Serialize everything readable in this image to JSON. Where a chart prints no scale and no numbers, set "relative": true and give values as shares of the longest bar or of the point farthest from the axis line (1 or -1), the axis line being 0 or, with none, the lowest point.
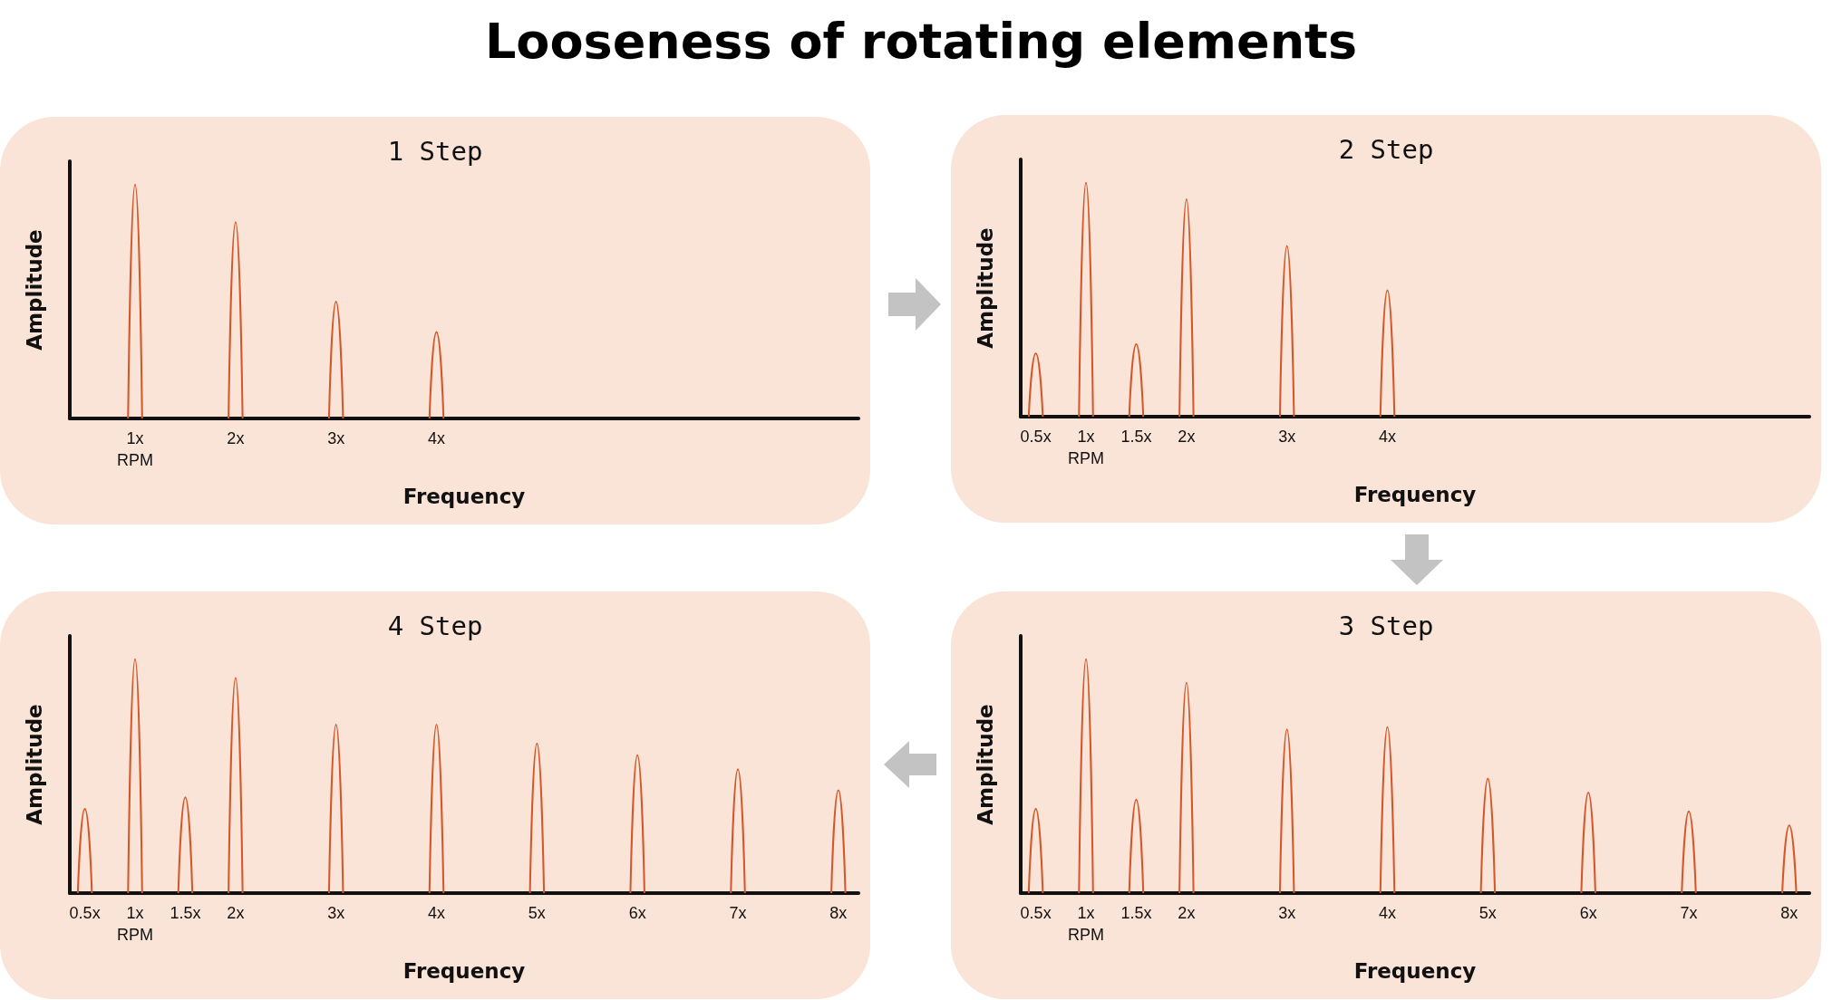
{
  "chart_data": [
    {
      "type": "line",
      "title": "Looseness of rotating elements",
      "subtitle": "1 Step",
      "xlabel": "Frequency",
      "ylabel": "Amplitude",
      "relative": true,
      "tick_labels": "x",
      "grid": false,
      "marker": "none",
      "xlim": [
        0.35,
        8.2
      ],
      "xticks": [
        {
          "value": 1,
          "label": "1x\nRPM"
        },
        {
          "value": 2,
          "label": "2x"
        },
        {
          "value": 3,
          "label": "3x"
        },
        {
          "value": 4,
          "label": "4x"
        }
      ],
      "series": [
        {
          "color": "#d4572a",
          "x": [
            0.93,
            1,
            1.07,
            1.5,
            1.93,
            2,
            2.07,
            2.5,
            2.93,
            3,
            3.07,
            3.5,
            3.93,
            4,
            4.07
          ],
          "values": [
            0,
            1,
            0,
            null,
            0,
            0.84,
            0,
            null,
            0,
            0.5,
            0,
            null,
            0,
            0.37,
            0
          ]
        }
      ]
    },
    {
      "type": "line",
      "subtitle": "2 Step",
      "xlabel": "Frequency",
      "ylabel": "Amplitude",
      "relative": true,
      "tick_labels": "x",
      "grid": false,
      "marker": "none",
      "xlim": [
        0.35,
        8.2
      ],
      "xticks": [
        {
          "value": 0.5,
          "label": "0.5x"
        },
        {
          "value": 1,
          "label": "1x\nRPM"
        },
        {
          "value": 1.5,
          "label": "1.5x"
        },
        {
          "value": 2,
          "label": "2x"
        },
        {
          "value": 3,
          "label": "3x"
        },
        {
          "value": 4,
          "label": "4x"
        }
      ],
      "series": [
        {
          "color": "#d4572a",
          "x": [
            0.43,
            0.5,
            0.57,
            0.75,
            0.93,
            1,
            1.07,
            1.25,
            1.43,
            1.5,
            1.57,
            1.75,
            1.93,
            2,
            2.07,
            2.5,
            2.93,
            3,
            3.07,
            3.5,
            3.93,
            4,
            4.07
          ],
          "values": [
            0,
            0.27,
            0,
            null,
            0,
            1,
            0,
            null,
            0,
            0.31,
            0,
            null,
            0,
            0.93,
            0,
            null,
            0,
            0.73,
            0,
            null,
            0,
            0.54,
            0
          ]
        }
      ]
    },
    {
      "type": "line",
      "subtitle": "4 Step",
      "xlabel": "Frequency",
      "ylabel": "Amplitude",
      "relative": true,
      "tick_labels": "x",
      "grid": false,
      "marker": "none",
      "xlim": [
        0.35,
        8.2
      ],
      "xticks": [
        {
          "value": 0.5,
          "label": "0.5x"
        },
        {
          "value": 1,
          "label": "1x\nRPM"
        },
        {
          "value": 1.5,
          "label": "1.5x"
        },
        {
          "value": 2,
          "label": "2x"
        },
        {
          "value": 3,
          "label": "3x"
        },
        {
          "value": 4,
          "label": "4x"
        },
        {
          "value": 5,
          "label": "5x"
        },
        {
          "value": 6,
          "label": "6x"
        },
        {
          "value": 7,
          "label": "7x"
        },
        {
          "value": 8,
          "label": "8x"
        }
      ],
      "series": [
        {
          "color": "#d4572a",
          "x": [
            0.43,
            0.5,
            0.57,
            0.75,
            0.93,
            1,
            1.07,
            1.25,
            1.43,
            1.5,
            1.57,
            1.75,
            1.93,
            2,
            2.07,
            2.5,
            2.93,
            3,
            3.07,
            3.5,
            3.93,
            4,
            4.07,
            4.5,
            4.93,
            5,
            5.07,
            5.5,
            5.93,
            6,
            6.07,
            6.5,
            6.93,
            7,
            7.07,
            7.5,
            7.93,
            8,
            8.07
          ],
          "values": [
            0,
            0.36,
            0,
            null,
            0,
            1,
            0,
            null,
            0,
            0.41,
            0,
            null,
            0,
            0.92,
            0,
            null,
            0,
            0.72,
            0,
            null,
            0,
            0.72,
            0,
            null,
            0,
            0.64,
            0,
            null,
            0,
            0.59,
            0,
            null,
            0,
            0.53,
            0,
            null,
            0,
            0.44,
            0
          ]
        }
      ]
    },
    {
      "type": "line",
      "subtitle": "3 Step",
      "xlabel": "Frequency",
      "ylabel": "Amplitude",
      "relative": true,
      "tick_labels": "x",
      "grid": false,
      "marker": "none",
      "xlim": [
        0.35,
        8.2
      ],
      "xticks": [
        {
          "value": 0.5,
          "label": "0.5x"
        },
        {
          "value": 1,
          "label": "1x\nRPM"
        },
        {
          "value": 1.5,
          "label": "1.5x"
        },
        {
          "value": 2,
          "label": "2x"
        },
        {
          "value": 3,
          "label": "3x"
        },
        {
          "value": 4,
          "label": "4x"
        },
        {
          "value": 5,
          "label": "5x"
        },
        {
          "value": 6,
          "label": "6x"
        },
        {
          "value": 7,
          "label": "7x"
        },
        {
          "value": 8,
          "label": "8x"
        }
      ],
      "series": [
        {
          "color": "#d4572a",
          "x": [
            0.43,
            0.5,
            0.57,
            0.75,
            0.93,
            1,
            1.07,
            1.25,
            1.43,
            1.5,
            1.57,
            1.75,
            1.93,
            2,
            2.07,
            2.5,
            2.93,
            3,
            3.07,
            3.5,
            3.93,
            4,
            4.07,
            4.5,
            4.93,
            5,
            5.07,
            5.5,
            5.93,
            6,
            6.07,
            6.5,
            6.93,
            7,
            7.07,
            7.5,
            7.93,
            8,
            8.07
          ],
          "values": [
            0,
            0.36,
            0,
            null,
            0,
            1,
            0,
            null,
            0,
            0.4,
            0,
            null,
            0,
            0.9,
            0,
            null,
            0,
            0.7,
            0,
            null,
            0,
            0.71,
            0,
            null,
            0,
            0.49,
            0,
            null,
            0,
            0.43,
            0,
            null,
            0,
            0.35,
            0,
            null,
            0,
            0.29,
            0
          ]
        }
      ]
    }
  ]
}
